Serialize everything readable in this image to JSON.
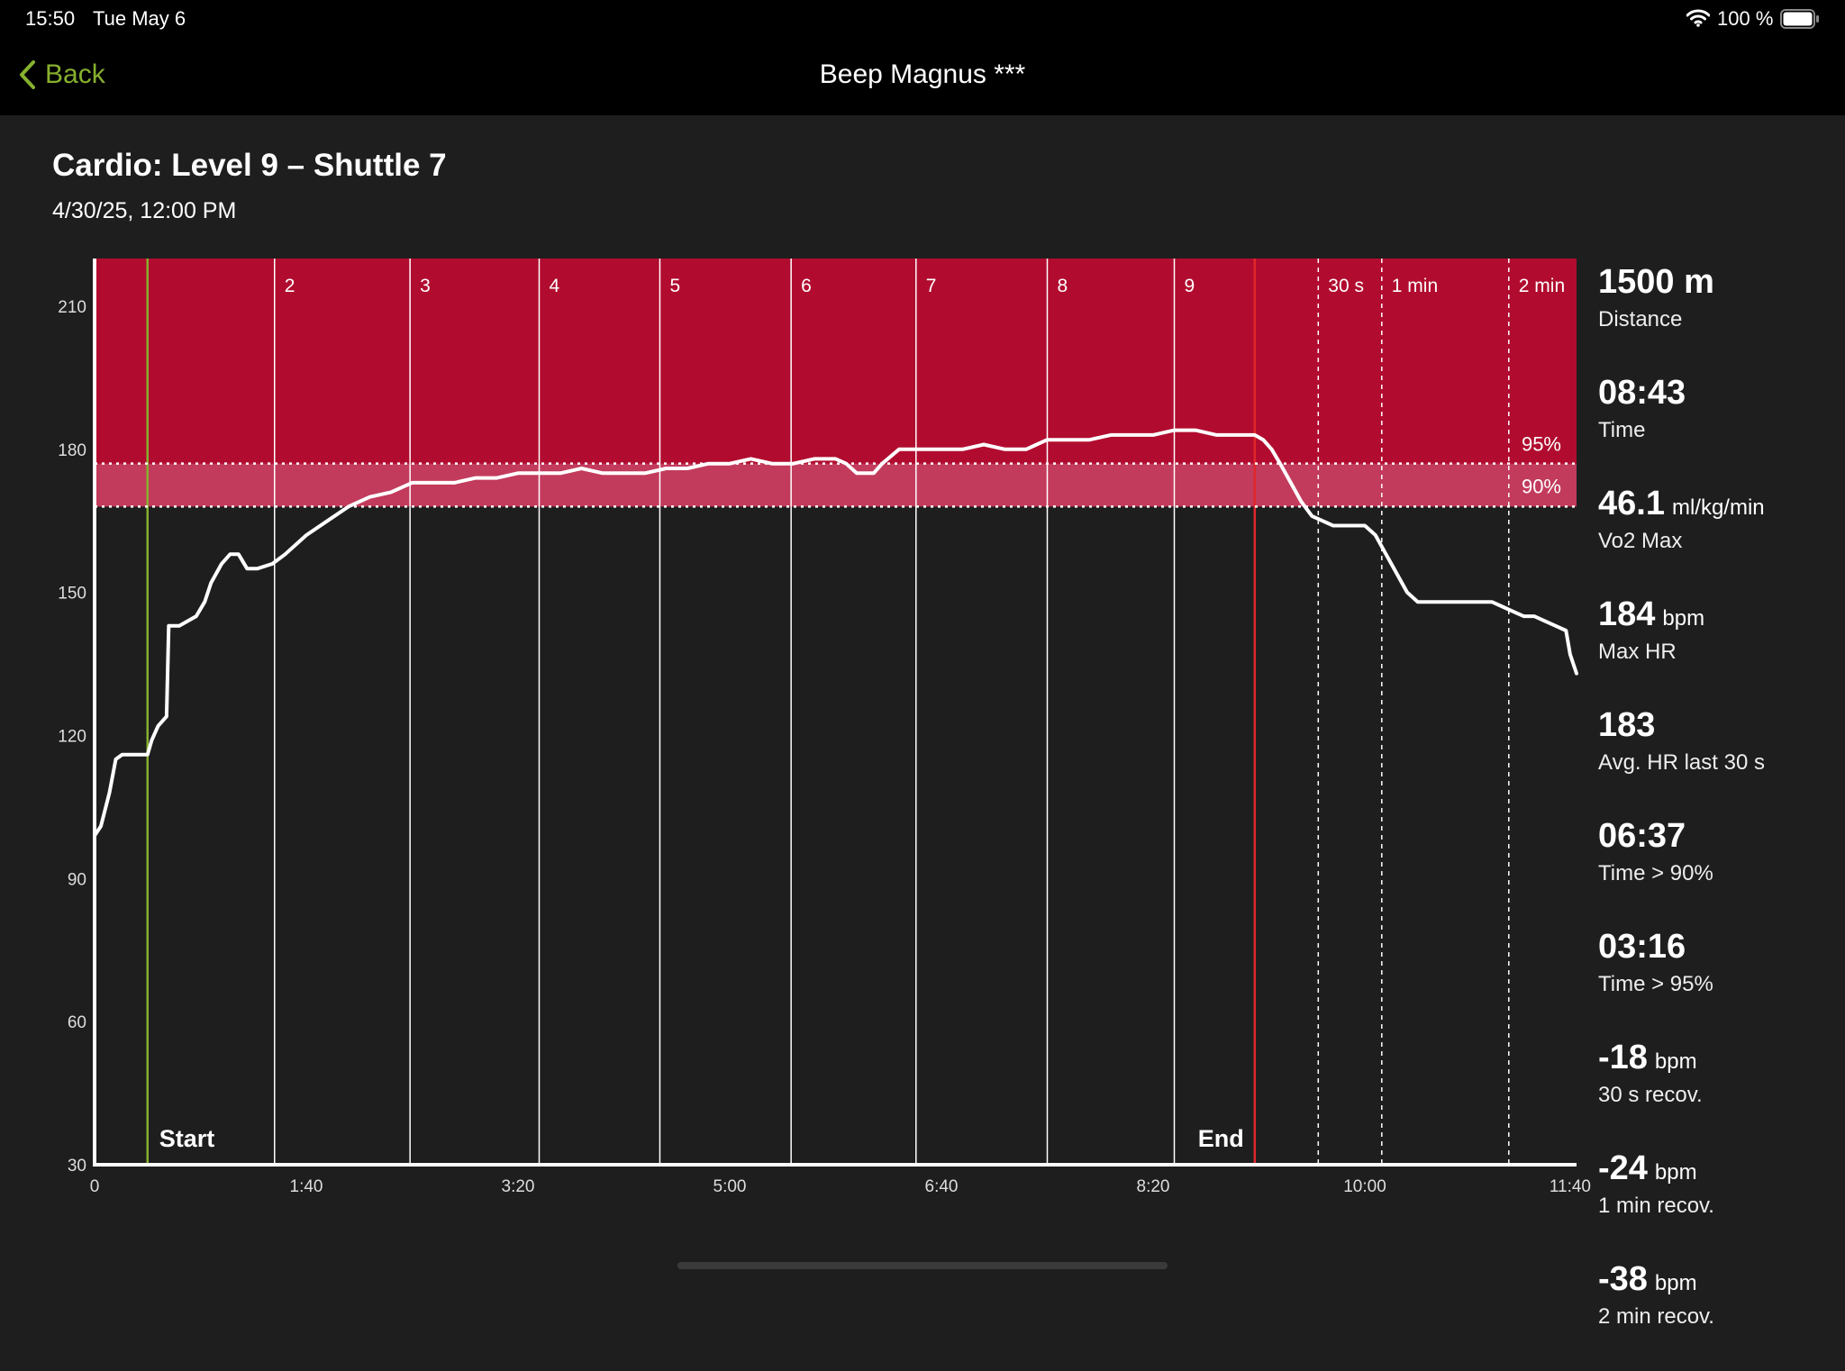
{
  "status_bar": {
    "time": "15:50",
    "date": "Tue May 6",
    "battery": "100 %"
  },
  "nav": {
    "back_label": "Back",
    "title": "Beep Magnus ***"
  },
  "page": {
    "title": "Cardio: Level 9 – Shuttle 7",
    "date": "4/30/25, 12:00 PM"
  },
  "stats": [
    {
      "value": "1500 m",
      "unit": "",
      "label": "Distance"
    },
    {
      "value": "08:43",
      "unit": "",
      "label": "Time"
    },
    {
      "value": "46.1",
      "unit": "ml/kg/min",
      "label": "Vo2 Max"
    },
    {
      "value": "184",
      "unit": "bpm",
      "label": "Max HR"
    },
    {
      "value": "183",
      "unit": "",
      "label": "Avg. HR last 30 s"
    },
    {
      "value": "06:37",
      "unit": "",
      "label": "Time > 90%"
    },
    {
      "value": "03:16",
      "unit": "",
      "label": "Time > 95%"
    },
    {
      "value": "-18",
      "unit": "bpm",
      "label": "30 s recov."
    },
    {
      "value": "-24",
      "unit": "bpm",
      "label": "1 min recov."
    },
    {
      "value": "-38",
      "unit": "bpm",
      "label": "2 min recov."
    }
  ],
  "colors": {
    "zone_red": "#b10c2f",
    "band_pink": "#c23b5c",
    "accent_green": "#86b02e",
    "end_red": "#e0262b"
  },
  "chart_data": {
    "type": "line",
    "xlabel": "",
    "ylabel": "",
    "x_unit": "seconds",
    "xlim": [
      0,
      700
    ],
    "ylim": [
      30,
      220
    ],
    "x_ticks": [
      {
        "value": 0,
        "label": "0"
      },
      {
        "value": 100,
        "label": "1:40"
      },
      {
        "value": 200,
        "label": "3:20"
      },
      {
        "value": 300,
        "label": "5:00"
      },
      {
        "value": 400,
        "label": "6:40"
      },
      {
        "value": 500,
        "label": "8:20"
      },
      {
        "value": 600,
        "label": "10:00"
      },
      {
        "value": 700,
        "label": "11:40"
      }
    ],
    "y_ticks": [
      30,
      60,
      90,
      120,
      150,
      180,
      210
    ],
    "red_zone_start": 168,
    "thresholds": [
      {
        "value": 168,
        "label": "90%"
      },
      {
        "value": 177,
        "label": "95%"
      }
    ],
    "markers": [
      {
        "x": 25,
        "label": "Start",
        "kind": "start"
      },
      {
        "x": 85,
        "label": "2",
        "kind": "level"
      },
      {
        "x": 149,
        "label": "3",
        "kind": "level"
      },
      {
        "x": 210,
        "label": "4",
        "kind": "level"
      },
      {
        "x": 267,
        "label": "5",
        "kind": "level"
      },
      {
        "x": 329,
        "label": "6",
        "kind": "level"
      },
      {
        "x": 388,
        "label": "7",
        "kind": "level"
      },
      {
        "x": 450,
        "label": "8",
        "kind": "level"
      },
      {
        "x": 510,
        "label": "9",
        "kind": "level"
      },
      {
        "x": 548,
        "label": "End",
        "kind": "end"
      },
      {
        "x": 578,
        "label": "30 s",
        "kind": "recovery"
      },
      {
        "x": 608,
        "label": "1 min",
        "kind": "recovery"
      },
      {
        "x": 668,
        "label": "2 min",
        "kind": "recovery"
      }
    ],
    "series": [
      {
        "name": "Heart rate",
        "x": [
          0,
          3,
          7,
          10,
          13,
          20,
          25,
          27,
          30,
          34,
          35,
          40,
          48,
          52,
          55,
          60,
          64,
          68,
          72,
          77,
          84,
          90,
          100,
          110,
          120,
          130,
          140,
          150,
          160,
          170,
          180,
          190,
          200,
          210,
          220,
          230,
          240,
          250,
          260,
          270,
          280,
          290,
          300,
          310,
          320,
          330,
          340,
          350,
          355,
          360,
          368,
          372,
          380,
          390,
          400,
          410,
          420,
          430,
          440,
          450,
          460,
          470,
          480,
          490,
          500,
          510,
          520,
          530,
          540,
          548,
          552,
          556,
          560,
          565,
          570,
          575,
          580,
          585,
          590,
          600,
          605,
          610,
          615,
          620,
          625,
          630,
          640,
          650,
          660,
          665,
          670,
          675,
          680,
          685,
          690,
          695,
          697,
          700
        ],
        "values": [
          99,
          101,
          108,
          115,
          116,
          116,
          116,
          119,
          122,
          124,
          143,
          143,
          145,
          148,
          152,
          156,
          158,
          158,
          155,
          155,
          156,
          158,
          162,
          165,
          168,
          170,
          171,
          173,
          173,
          173,
          174,
          174,
          175,
          175,
          175,
          176,
          175,
          175,
          175,
          176,
          176,
          177,
          177,
          178,
          177,
          177,
          178,
          178,
          177,
          175,
          175,
          177,
          180,
          180,
          180,
          180,
          181,
          180,
          180,
          182,
          182,
          182,
          183,
          183,
          183,
          184,
          184,
          183,
          183,
          183,
          182,
          180,
          177,
          173,
          169,
          166,
          165,
          164,
          164,
          164,
          162,
          158,
          154,
          150,
          148,
          148,
          148,
          148,
          148,
          147,
          146,
          145,
          145,
          144,
          143,
          142,
          137,
          133
        ]
      }
    ]
  }
}
